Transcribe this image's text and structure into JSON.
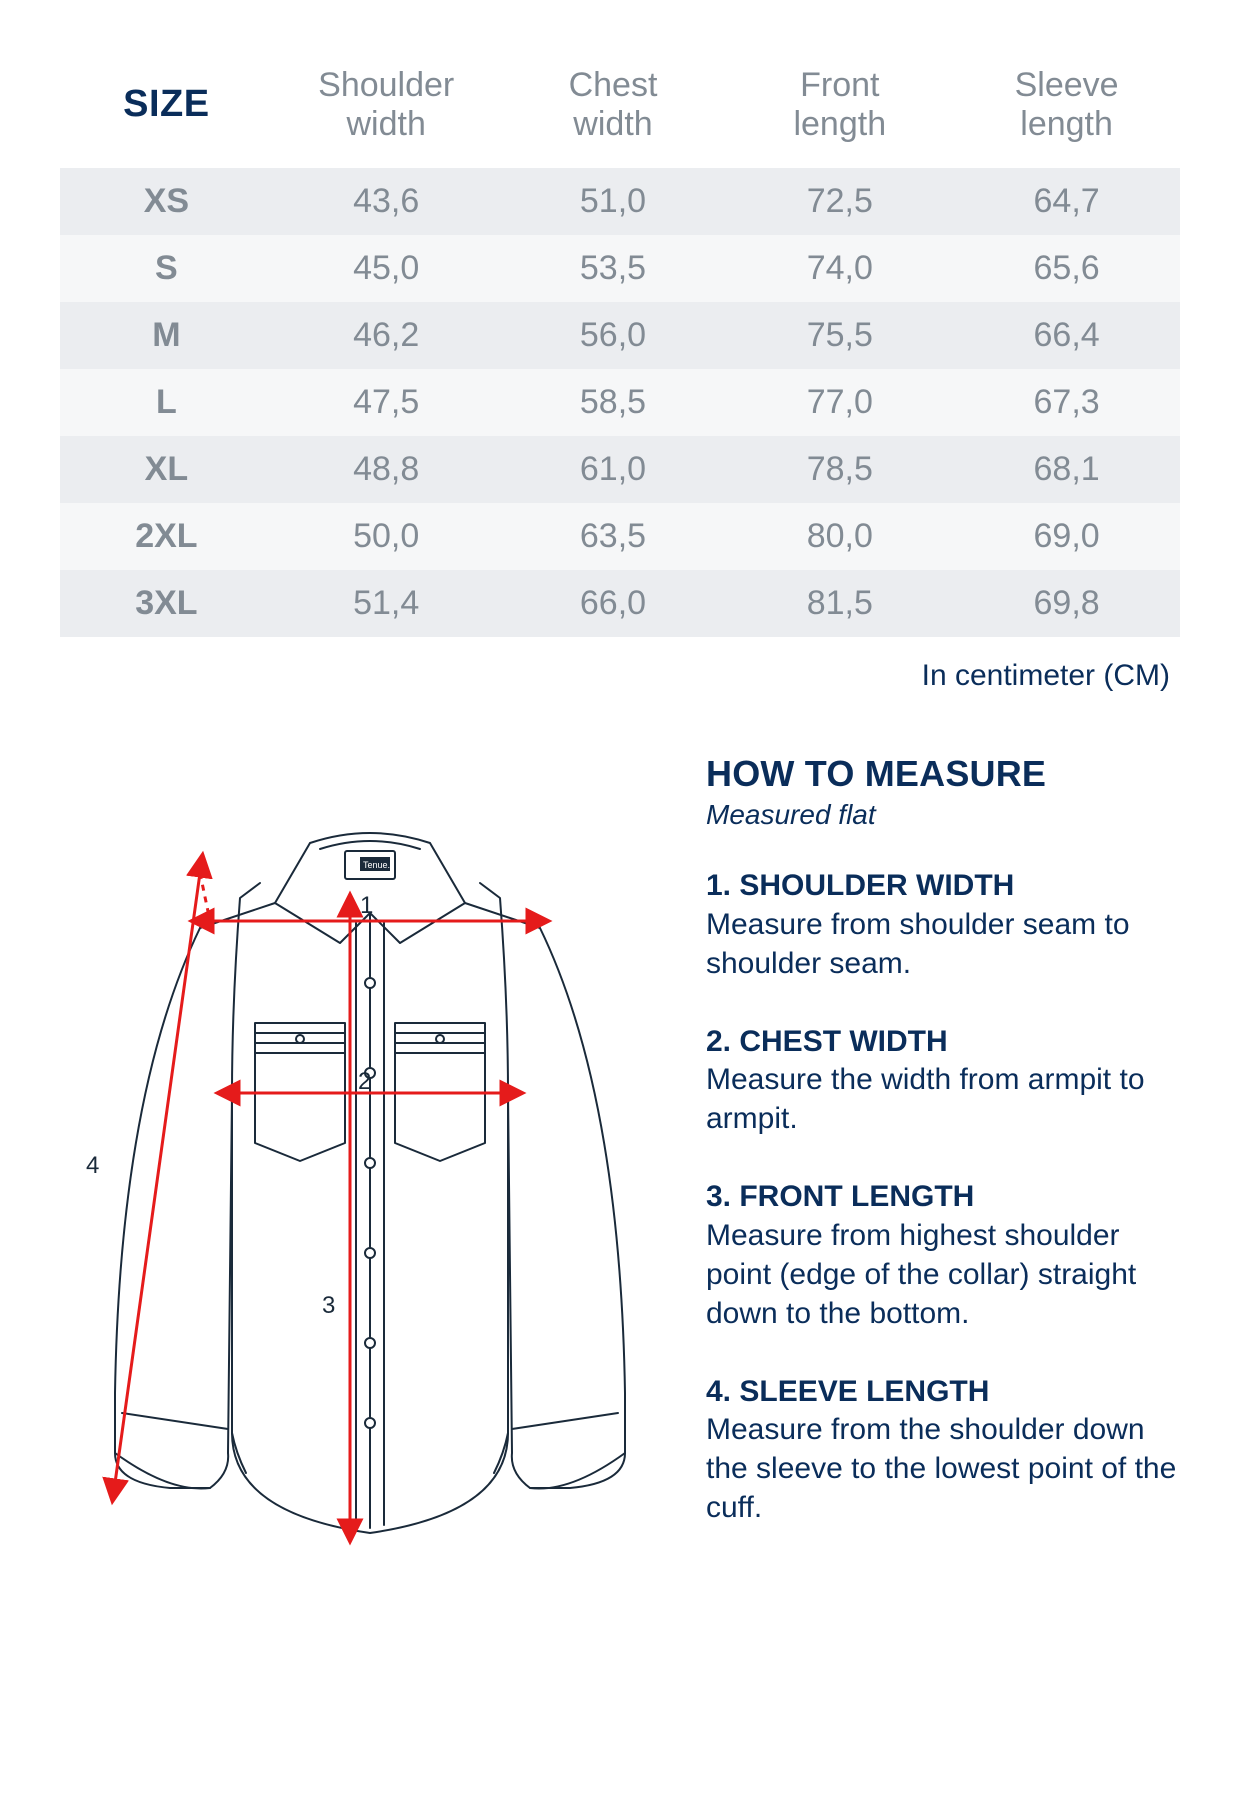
{
  "table": {
    "header_size": "SIZE",
    "columns": [
      "Shoulder width",
      "Chest width",
      "Front length",
      "Sleeve length"
    ],
    "rows": [
      {
        "size": "XS",
        "vals": [
          "43,6",
          "51,0",
          "72,5",
          "64,7"
        ]
      },
      {
        "size": "S",
        "vals": [
          "45,0",
          "53,5",
          "74,0",
          "65,6"
        ]
      },
      {
        "size": "M",
        "vals": [
          "46,2",
          "56,0",
          "75,5",
          "66,4"
        ]
      },
      {
        "size": "L",
        "vals": [
          "47,5",
          "58,5",
          "77,0",
          "67,3"
        ]
      },
      {
        "size": "XL",
        "vals": [
          "48,8",
          "61,0",
          "78,5",
          "68,1"
        ]
      },
      {
        "size": "2XL",
        "vals": [
          "50,0",
          "63,5",
          "80,0",
          "69,0"
        ]
      },
      {
        "size": "3XL",
        "vals": [
          "51,4",
          "66,0",
          "81,5",
          "69,8"
        ]
      }
    ],
    "unit_note": "In centimeter (CM)",
    "colors": {
      "header_size": "#0a2d5a",
      "header_cols": "#828b94",
      "row_odd_bg": "#ebedf0",
      "row_even_bg": "#f6f7f8",
      "cell_text": "#828b94"
    }
  },
  "howto": {
    "title": "HOW TO MEASURE",
    "subtitle": "Measured flat",
    "steps": [
      {
        "title": "1. SHOULDER WIDTH",
        "body": "Measure from shoulder seam to shoulder seam."
      },
      {
        "title": "2. CHEST WIDTH",
        "body": "Measure the width from armpit to armpit."
      },
      {
        "title": "3. FRONT LENGTH",
        "body": "Measure from highest shoulder point (edge of the collar) straight down to the bottom."
      },
      {
        "title": "4. SLEEVE LENGTH",
        "body": "Measure from the shoulder down the sleeve to the lowest point of the cuff."
      }
    ]
  },
  "diagram": {
    "brand_label": "Tenue.",
    "arrow_color": "#e51b1b",
    "outline_color": "#1a2a3a",
    "outline_width": 2,
    "numbers": {
      "1": "1",
      "2": "2",
      "3": "3",
      "4": "4"
    },
    "number_color": "#1a2a3a"
  }
}
